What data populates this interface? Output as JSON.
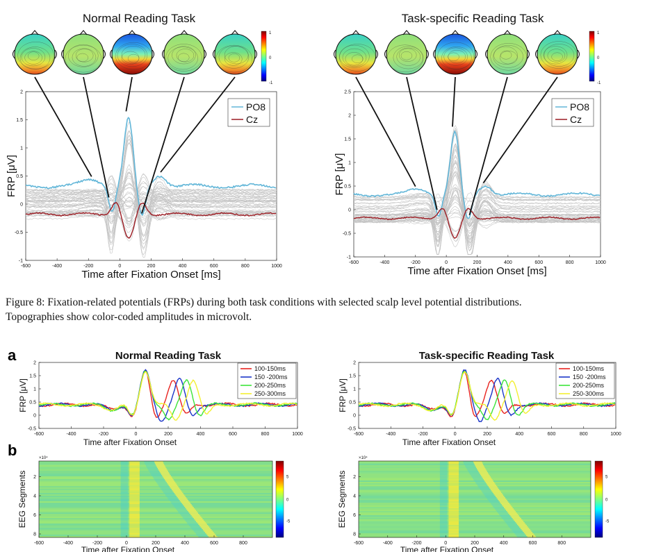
{
  "figure8": {
    "caption_line1": "Figure 8: Fixation-related potentials (FRPs) during both task conditions with selected scalp level potential distributions.",
    "caption_line2": "Topographies show color-coded amplitudes in microvolt.",
    "colorbar_ticks": [
      "1",
      "0",
      "-1"
    ],
    "panels": [
      {
        "title": "Normal Reading Task",
        "ylabel": "FRP [μV]",
        "xlabel": "Time after Fixation Onset [ms]",
        "legend": [
          "PO8",
          "Cz"
        ],
        "xticks": [
          -600,
          -400,
          -200,
          0,
          200,
          400,
          600,
          800,
          1000
        ],
        "yticks": [
          2,
          1.5,
          1,
          0.5,
          0,
          -0.5,
          -1
        ],
        "ylim": [
          -1,
          2
        ],
        "topo_times_ms": [
          -180,
          -70,
          40,
          140,
          260
        ],
        "topo_kind": [
          "pos-bottom",
          "mild",
          "strong",
          "mild",
          "pos-bottom"
        ]
      },
      {
        "title": "Task-specific Reading Task",
        "ylabel": "FRP [μV]",
        "xlabel": "Time after Fixation Onset [ms]",
        "legend": [
          "PO8",
          "Cz"
        ],
        "xticks": [
          -600,
          -400,
          -200,
          0,
          200,
          400,
          600,
          800,
          1000
        ],
        "yticks": [
          2.5,
          2,
          1.5,
          1,
          0.5,
          0,
          -0.5,
          -1
        ],
        "ylim": [
          -1,
          2.5
        ],
        "topo_times_ms": [
          -200,
          -60,
          40,
          150,
          240
        ],
        "topo_kind": [
          "pos-bottom",
          "mild",
          "strong",
          "mild",
          "pos-bottom"
        ]
      }
    ]
  },
  "figure9": {
    "label_a": "a",
    "label_b": "b",
    "panels": [
      {
        "title": "Normal Reading Task",
        "ylabel": "FRP [μV]",
        "xlabel": "Time after Fixation Onset",
        "xticks": [
          -600,
          -400,
          -200,
          0,
          200,
          400,
          600,
          800,
          1000
        ],
        "yticks": [
          2,
          1.5,
          1,
          0.5,
          0,
          -0.5
        ],
        "ylim": [
          -0.5,
          2
        ],
        "legend": [
          "100-150ms",
          "150 -200ms",
          "200-250ms",
          "250-300ms"
        ],
        "legend_colors": [
          "#e8231f",
          "#1a34c8",
          "#3ce43a",
          "#f3ef31"
        ],
        "peak_times_ms": [
          230,
          270,
          315,
          355
        ],
        "heat_ylabel": "EEG Segments",
        "heat_xlabel": "Time after Fixation Onset",
        "heat_exp": "×10⁴",
        "heat_yticks": [
          "2",
          "4",
          "6",
          "8"
        ],
        "heat_xticks": [
          -600,
          -400,
          -200,
          0,
          200,
          400,
          600,
          800
        ],
        "heat_cticks": [
          "5",
          "0",
          "-5"
        ]
      },
      {
        "title": "Task-specific Reading Task",
        "ylabel": "FRP [μV]",
        "xlabel": "Time after Fixation Onset",
        "xticks": [
          -600,
          -400,
          -200,
          0,
          200,
          400,
          600,
          800,
          1000
        ],
        "yticks": [
          2,
          1.5,
          1,
          0.5,
          0,
          -0.5
        ],
        "ylim": [
          -0.5,
          2
        ],
        "legend": [
          "100-150ms",
          "150 -200ms",
          "200-250ms",
          "250-300ms"
        ],
        "legend_colors": [
          "#e8231f",
          "#1a34c8",
          "#3ce43a",
          "#f3ef31"
        ],
        "peak_times_ms": [
          225,
          265,
          310,
          355
        ],
        "heat_ylabel": "EEG Segments",
        "heat_xlabel": "Time after Fixation Onset",
        "heat_exp": "×10⁴",
        "heat_yticks": [
          "2",
          "4",
          "6",
          "8"
        ],
        "heat_xticks": [
          -600,
          -400,
          -200,
          0,
          200,
          400,
          600,
          800
        ],
        "heat_cticks": [
          "5",
          "0",
          "-5"
        ]
      }
    ]
  },
  "colors": {
    "po8": "#62b6d8",
    "cz": "#9c1c23",
    "gray_traces": "#c4c4c4",
    "axis": "#222222"
  }
}
